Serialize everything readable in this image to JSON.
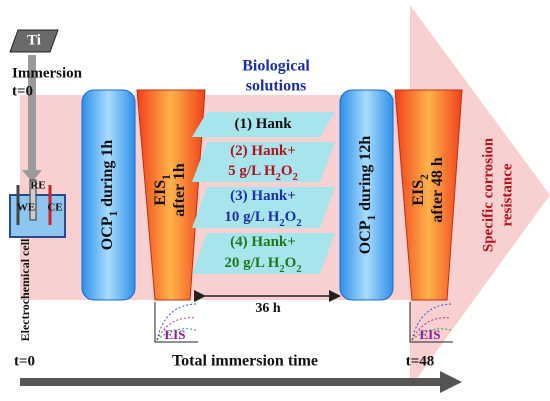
{
  "ti": "Ti",
  "immersion": "Immersion",
  "start_time": "t=0",
  "cell": {
    "re": "RE",
    "we": "WE",
    "ce": "CE",
    "label": "Electrochemical cell"
  },
  "ocp_1": [
    {
      "t": "OCP"
    },
    {
      "sub": "1"
    },
    {
      "t": " during 1h"
    }
  ],
  "eis_1": {
    "line1": [
      {
        "t": "EIS"
      },
      {
        "sub": "1"
      }
    ],
    "line2": [
      {
        "t": "after 1h"
      }
    ]
  },
  "biological": [
    "Biological",
    "solutions"
  ],
  "solutions": [
    [
      [
        {
          "t": "(1) Hank"
        }
      ]
    ],
    [
      [
        {
          "t": "(2) Hank+"
        }
      ],
      [
        {
          "t": "5 g/L H"
        },
        {
          "sub": "2"
        },
        {
          "t": "O"
        },
        {
          "sub": "2"
        }
      ]
    ],
    [
      [
        {
          "t": "(3) Hank+"
        }
      ],
      [
        {
          "t": "10 g/L H"
        },
        {
          "sub": "2"
        },
        {
          "t": "O"
        },
        {
          "sub": "2"
        }
      ]
    ],
    [
      [
        {
          "t": "(4) Hank+"
        }
      ],
      [
        {
          "t": "20 g/L H"
        },
        {
          "sub": "2"
        },
        {
          "t": "O"
        },
        {
          "sub": "2"
        }
      ]
    ]
  ],
  "interval": "36 h",
  "ocp_2": [
    {
      "t": "OCP"
    },
    {
      "sub": "1"
    },
    {
      "t": " during 12h"
    }
  ],
  "eis_2": {
    "line1": [
      {
        "t": "EIS"
      },
      {
        "sub": "2"
      }
    ],
    "line2": [
      {
        "t": "after 48 h"
      }
    ]
  },
  "outcome": [
    "Specific corrosion",
    "resistance"
  ],
  "eis_plots": [
    "EIS",
    "EIS"
  ],
  "timeline": {
    "start": "t=0",
    "label": "Total immersion time",
    "end": "t=48"
  }
}
